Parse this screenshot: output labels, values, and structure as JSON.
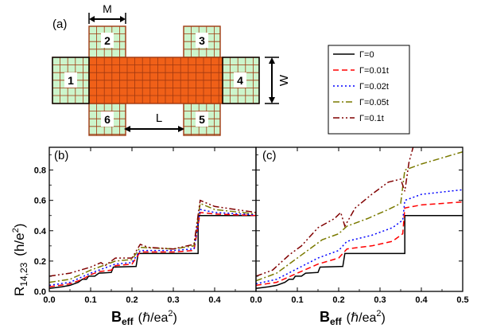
{
  "panel_a": {
    "label": "(a)",
    "dim_M": "M",
    "dim_L": "L",
    "dim_W": "W",
    "leads": [
      "1",
      "2",
      "3",
      "4",
      "5",
      "6"
    ],
    "colors": {
      "device": "#f06018",
      "lead": "#ccf5cc",
      "edge": "#a03810"
    }
  },
  "legend": {
    "entries": [
      {
        "label": "Γ=0",
        "color": "#000000",
        "dash": "solid"
      },
      {
        "label": "Γ=0.01t",
        "color": "#ff0000",
        "dash": "dash"
      },
      {
        "label": "Γ=0.02t",
        "color": "#0000ff",
        "dash": "dot"
      },
      {
        "label": "Γ=0.05t",
        "color": "#7a7a00",
        "dash": "dashdot"
      },
      {
        "label": "Γ=0.1t",
        "color": "#800000",
        "dash": "dashdotdot"
      }
    ]
  },
  "axis": {
    "ylabel_main": "R",
    "ylabel_sub": "14,23",
    "ylabel_unit": "(h/e",
    "ylabel_unit_sup": "2",
    "ylabel_unit_end": ")",
    "xlabel_main": "B",
    "xlabel_sub": "eff",
    "xlabel_unit": "(ℏ/ea",
    "xlabel_unit_sup": "2",
    "xlabel_unit_end": ")"
  },
  "chart_data": [
    {
      "type": "line",
      "panel": "(b)",
      "xlim": [
        0.0,
        0.5
      ],
      "ylim": [
        0.0,
        0.95
      ],
      "xticks": [
        "0.0",
        "0.1",
        "0.2",
        "0.3",
        "0.4",
        "0.5"
      ],
      "yticks": [
        "0.0",
        "0.2",
        "0.4",
        "0.6",
        "0.8"
      ],
      "series": [
        {
          "name": "Γ=0",
          "points": [
            [
              0,
              0.02
            ],
            [
              0.03,
              0.03
            ],
            [
              0.05,
              0.04
            ],
            [
              0.07,
              0.06
            ],
            [
              0.08,
              0.08
            ],
            [
              0.09,
              0.08
            ],
            [
              0.095,
              0.1
            ],
            [
              0.11,
              0.1
            ],
            [
              0.12,
              0.12
            ],
            [
              0.15,
              0.125
            ],
            [
              0.155,
              0.16
            ],
            [
              0.21,
              0.165
            ],
            [
              0.215,
              0.25
            ],
            [
              0.36,
              0.25
            ],
            [
              0.36,
              0.5
            ],
            [
              0.5,
              0.5
            ]
          ]
        },
        {
          "name": "Γ=0.01t",
          "points": [
            [
              0,
              0.03
            ],
            [
              0.05,
              0.05
            ],
            [
              0.08,
              0.08
            ],
            [
              0.1,
              0.11
            ],
            [
              0.12,
              0.13
            ],
            [
              0.15,
              0.14
            ],
            [
              0.16,
              0.17
            ],
            [
              0.2,
              0.18
            ],
            [
              0.22,
              0.26
            ],
            [
              0.3,
              0.26
            ],
            [
              0.35,
              0.27
            ],
            [
              0.365,
              0.52
            ],
            [
              0.4,
              0.51
            ],
            [
              0.5,
              0.5
            ]
          ]
        },
        {
          "name": "Γ=0.02t",
          "points": [
            [
              0,
              0.04
            ],
            [
              0.05,
              0.06
            ],
            [
              0.1,
              0.12
            ],
            [
              0.13,
              0.15
            ],
            [
              0.16,
              0.18
            ],
            [
              0.2,
              0.19
            ],
            [
              0.22,
              0.27
            ],
            [
              0.3,
              0.27
            ],
            [
              0.35,
              0.28
            ],
            [
              0.365,
              0.54
            ],
            [
              0.4,
              0.52
            ],
            [
              0.5,
              0.505
            ]
          ]
        },
        {
          "name": "Γ=0.05t",
          "points": [
            [
              0,
              0.06
            ],
            [
              0.05,
              0.08
            ],
            [
              0.1,
              0.14
            ],
            [
              0.13,
              0.17
            ],
            [
              0.16,
              0.2
            ],
            [
              0.2,
              0.21
            ],
            [
              0.22,
              0.29
            ],
            [
              0.3,
              0.28
            ],
            [
              0.35,
              0.3
            ],
            [
              0.365,
              0.58
            ],
            [
              0.4,
              0.54
            ],
            [
              0.5,
              0.51
            ]
          ]
        },
        {
          "name": "Γ=0.1t",
          "points": [
            [
              0,
              0.1
            ],
            [
              0.05,
              0.12
            ],
            [
              0.1,
              0.16
            ],
            [
              0.125,
              0.19
            ],
            [
              0.135,
              0.17
            ],
            [
              0.16,
              0.22
            ],
            [
              0.2,
              0.22
            ],
            [
              0.22,
              0.31
            ],
            [
              0.24,
              0.29
            ],
            [
              0.3,
              0.28
            ],
            [
              0.35,
              0.31
            ],
            [
              0.365,
              0.6
            ],
            [
              0.4,
              0.56
            ],
            [
              0.5,
              0.52
            ]
          ]
        }
      ]
    },
    {
      "type": "line",
      "panel": "(c)",
      "xlim": [
        0.0,
        0.5
      ],
      "ylim": [
        0.0,
        0.95
      ],
      "xticks": [
        "0.0",
        "0.1",
        "0.2",
        "0.3",
        "0.4",
        "0.5"
      ],
      "yticks": [
        "0.0",
        "0.2",
        "0.4",
        "0.6",
        "0.8"
      ],
      "series": [
        {
          "name": "Γ=0",
          "points": [
            [
              0,
              0.02
            ],
            [
              0.03,
              0.03
            ],
            [
              0.05,
              0.04
            ],
            [
              0.07,
              0.06
            ],
            [
              0.08,
              0.08
            ],
            [
              0.09,
              0.08
            ],
            [
              0.095,
              0.1
            ],
            [
              0.11,
              0.1
            ],
            [
              0.12,
              0.12
            ],
            [
              0.15,
              0.125
            ],
            [
              0.155,
              0.16
            ],
            [
              0.21,
              0.165
            ],
            [
              0.215,
              0.25
            ],
            [
              0.36,
              0.25
            ],
            [
              0.36,
              0.5
            ],
            [
              0.5,
              0.5
            ]
          ]
        },
        {
          "name": "Γ=0.01t",
          "points": [
            [
              0,
              0.04
            ],
            [
              0.05,
              0.06
            ],
            [
              0.1,
              0.12
            ],
            [
              0.15,
              0.18
            ],
            [
              0.2,
              0.22
            ],
            [
              0.22,
              0.28
            ],
            [
              0.28,
              0.3
            ],
            [
              0.33,
              0.33
            ],
            [
              0.355,
              0.38
            ],
            [
              0.36,
              0.55
            ],
            [
              0.4,
              0.57
            ],
            [
              0.5,
              0.59
            ]
          ]
        },
        {
          "name": "Γ=0.02t",
          "points": [
            [
              0,
              0.05
            ],
            [
              0.05,
              0.08
            ],
            [
              0.1,
              0.15
            ],
            [
              0.15,
              0.22
            ],
            [
              0.2,
              0.27
            ],
            [
              0.22,
              0.33
            ],
            [
              0.28,
              0.37
            ],
            [
              0.33,
              0.42
            ],
            [
              0.355,
              0.47
            ],
            [
              0.36,
              0.6
            ],
            [
              0.4,
              0.64
            ],
            [
              0.5,
              0.67
            ]
          ]
        },
        {
          "name": "Γ=0.05t",
          "points": [
            [
              0,
              0.07
            ],
            [
              0.05,
              0.12
            ],
            [
              0.1,
              0.22
            ],
            [
              0.13,
              0.28
            ],
            [
              0.16,
              0.34
            ],
            [
              0.2,
              0.38
            ],
            [
              0.22,
              0.43
            ],
            [
              0.27,
              0.48
            ],
            [
              0.32,
              0.54
            ],
            [
              0.35,
              0.58
            ],
            [
              0.36,
              0.8
            ],
            [
              0.4,
              0.84
            ],
            [
              0.5,
              0.92
            ]
          ]
        },
        {
          "name": "Γ=0.1t",
          "points": [
            [
              0,
              0.1
            ],
            [
              0.04,
              0.14
            ],
            [
              0.08,
              0.24
            ],
            [
              0.11,
              0.3
            ],
            [
              0.13,
              0.36
            ],
            [
              0.15,
              0.42
            ],
            [
              0.19,
              0.48
            ],
            [
              0.205,
              0.52
            ],
            [
              0.215,
              0.43
            ],
            [
              0.24,
              0.55
            ],
            [
              0.28,
              0.64
            ],
            [
              0.32,
              0.72
            ],
            [
              0.35,
              0.74
            ],
            [
              0.36,
              0.66
            ],
            [
              0.37,
              0.85
            ],
            [
              0.38,
              0.95
            ]
          ]
        }
      ]
    }
  ]
}
